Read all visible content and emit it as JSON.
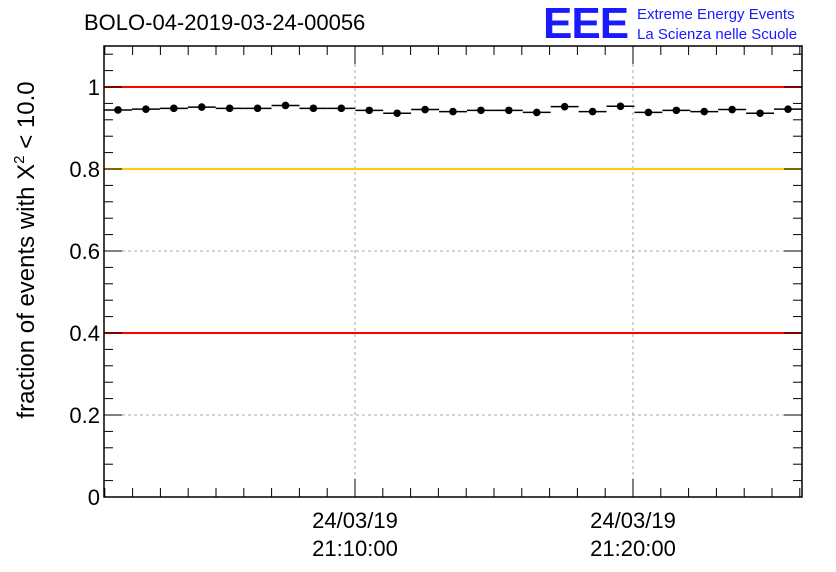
{
  "header": {
    "title": "BOLO-04-2019-03-24-00056"
  },
  "logo": {
    "mark": "EEE",
    "line1": "Extreme Energy Events",
    "line2": "La Scienza nelle Scuole"
  },
  "chart_data": {
    "type": "scatter",
    "ylabel_prefix": "fraction of events with ",
    "ylabel_symbol": "X",
    "ylabel_sup": "2",
    "ylabel_suffix": " < 10.0",
    "ylim": [
      0,
      1.1
    ],
    "y_ticks": [
      "0",
      "0.2",
      "0.4",
      "0.6",
      "0.8",
      "1"
    ],
    "x_tick_labels": [
      {
        "date": "24/03/19",
        "time": "21:10:00"
      },
      {
        "date": "24/03/19",
        "time": "21:20:00"
      }
    ],
    "grid": true,
    "reference_lines": [
      {
        "y": 1.0,
        "color": "#ff0000"
      },
      {
        "y": 0.8,
        "color": "#ffcc00"
      },
      {
        "y": 0.4,
        "color": "#ff0000"
      }
    ],
    "series": [
      {
        "values": [
          0.944,
          0.946,
          0.948,
          0.951,
          0.948,
          0.948,
          0.955,
          0.948,
          0.948,
          0.943,
          0.936,
          0.945,
          0.94,
          0.943,
          0.943,
          0.938,
          0.952,
          0.94,
          0.953,
          0.938,
          0.943,
          0.94,
          0.945,
          0.936,
          0.946
        ]
      }
    ]
  }
}
